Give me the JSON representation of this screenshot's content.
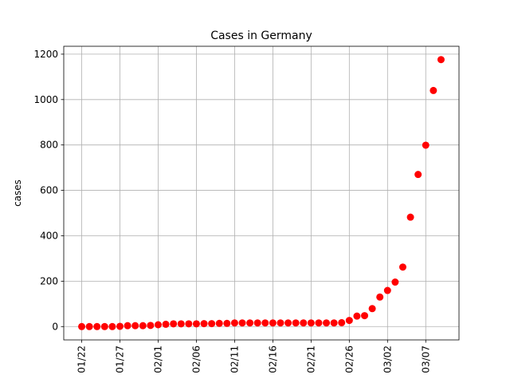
{
  "chart_data": {
    "type": "scatter",
    "title": "Cases in Germany",
    "y_label": "cases",
    "categories": [
      "01/22",
      null,
      null,
      null,
      null,
      "01/27",
      null,
      null,
      null,
      null,
      "02/01",
      null,
      null,
      null,
      null,
      "02/06",
      null,
      null,
      null,
      null,
      "02/11",
      null,
      null,
      null,
      null,
      "02/16",
      null,
      null,
      null,
      null,
      "02/21",
      null,
      null,
      null,
      null,
      "02/26",
      null,
      null,
      null,
      null,
      "03/02",
      null,
      null,
      null,
      null,
      "03/07",
      null,
      null
    ],
    "values": [
      0,
      0,
      0,
      0,
      0,
      1,
      4,
      4,
      4,
      5,
      8,
      10,
      12,
      12,
      12,
      12,
      13,
      13,
      14,
      14,
      16,
      16,
      16,
      16,
      16,
      16,
      16,
      16,
      16,
      16,
      16,
      16,
      16,
      16,
      17,
      27,
      46,
      48,
      79,
      130,
      159,
      196,
      262,
      482,
      670,
      799,
      1040,
      1176
    ],
    "color": "#ff0000",
    "ylim": [
      -58.8,
      1234.8
    ],
    "yticks": [
      0,
      200,
      400,
      600,
      800,
      1000,
      1200
    ],
    "grid": true
  }
}
